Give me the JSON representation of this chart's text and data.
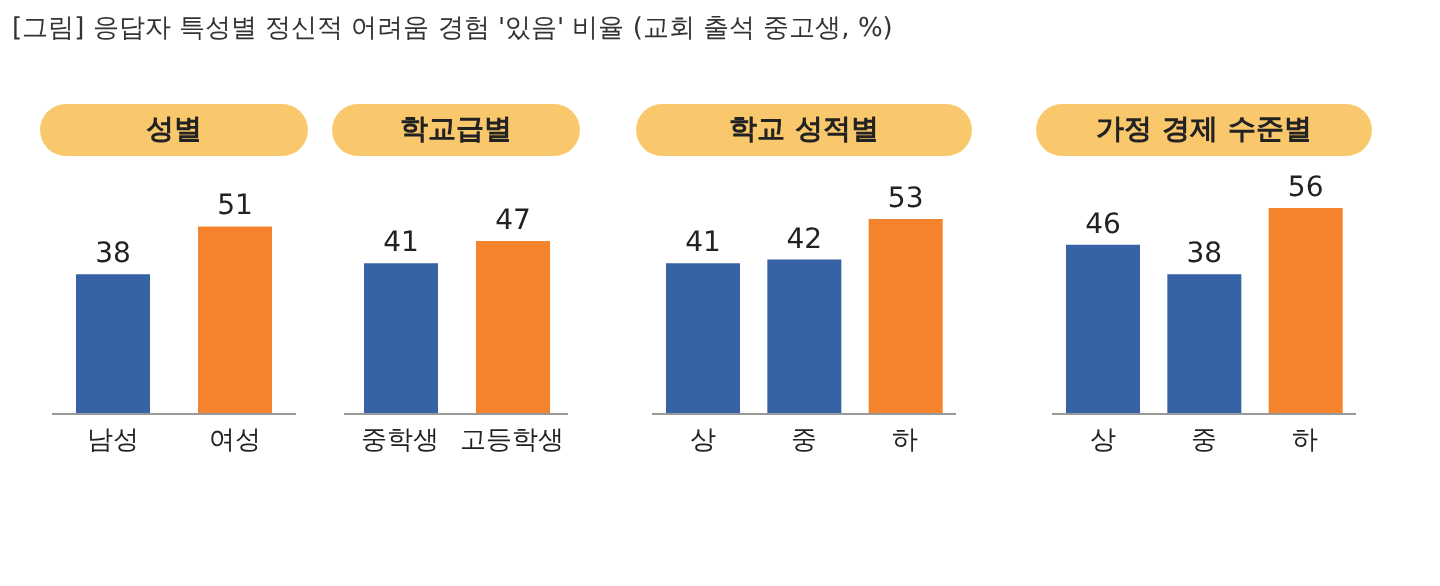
{
  "chart_data": [
    {
      "type": "bar",
      "title": "성별",
      "annotations": [
        "[그림] 응답자 특성별 정신적 어려움 경험 '있음' 비율 (교회 출석 중고생, %)"
      ],
      "categories": [
        "남성",
        "여성"
      ],
      "values": [
        38,
        51
      ],
      "colors": [
        "#3563a3",
        "#f5832e"
      ],
      "data_labels": true
    },
    {
      "type": "bar",
      "title": "학교급별",
      "categories": [
        "중학생",
        "고등학생"
      ],
      "values": [
        41,
        47
      ],
      "colors": [
        "#3563a3",
        "#f5832e"
      ],
      "data_labels": true
    },
    {
      "type": "bar",
      "title": "학교 성적별",
      "categories": [
        "상",
        "중",
        "하"
      ],
      "values": [
        41,
        42,
        53
      ],
      "colors": [
        "#3563a3",
        "#3563a3",
        "#f5832e"
      ],
      "data_labels": true
    },
    {
      "type": "bar",
      "title": "가정 경제 수준별",
      "categories": [
        "상",
        "중",
        "하"
      ],
      "values": [
        46,
        38,
        56
      ],
      "colors": [
        "#3563a3",
        "#3563a3",
        "#f5832e"
      ],
      "data_labels": true
    }
  ]
}
